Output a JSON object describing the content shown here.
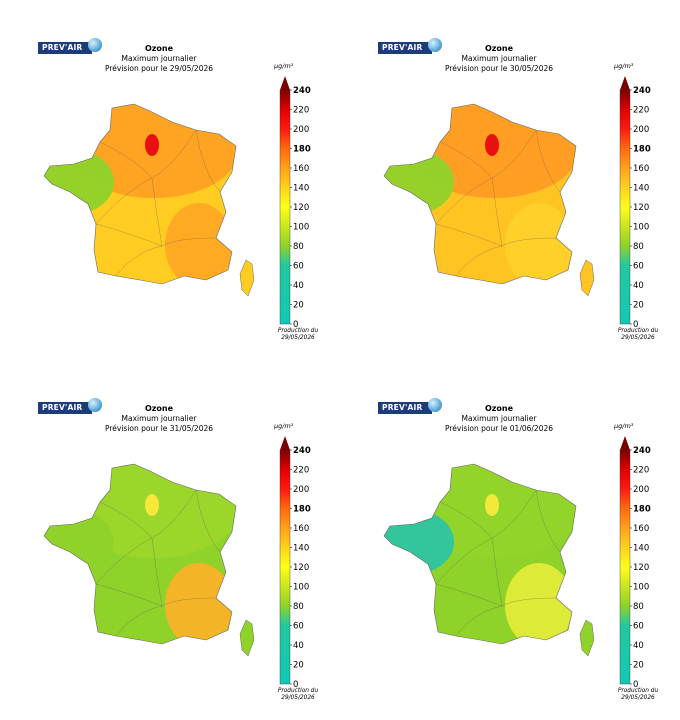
{
  "logo_text": "PREV'AIR",
  "unit": "µg/m³",
  "colorbar": {
    "ticks": [
      0,
      20,
      40,
      60,
      80,
      100,
      120,
      140,
      160,
      180,
      200,
      220,
      240
    ],
    "bold_ticks": [
      180,
      240
    ],
    "max": 240,
    "stops": [
      {
        "value": 0,
        "color": "#12c9b6"
      },
      {
        "value": 60,
        "color": "#22c8a0"
      },
      {
        "value": 80,
        "color": "#8fd22a"
      },
      {
        "value": 100,
        "color": "#c8e61e"
      },
      {
        "value": 120,
        "color": "#ffff1a"
      },
      {
        "value": 140,
        "color": "#ffd21a"
      },
      {
        "value": 160,
        "color": "#ffa21a"
      },
      {
        "value": 180,
        "color": "#ff6a10"
      },
      {
        "value": 200,
        "color": "#ff1a10"
      },
      {
        "value": 220,
        "color": "#e00000"
      },
      {
        "value": 240,
        "color": "#7a0000"
      }
    ]
  },
  "panels": [
    {
      "title": "Ozone",
      "subtitle": "Maximum journalier",
      "forecast": "Prévision pour le 29/05/2026",
      "production_label": "Production du",
      "production_date": "29/05/2026",
      "colors": {
        "base": "#ffcc22",
        "north": "#ff9f22",
        "west": "#8fd22a",
        "southeast": "#ffa622",
        "hotspot": "#e81010"
      }
    },
    {
      "title": "Ozone",
      "subtitle": "Maximum journalier",
      "forecast": "Prévision pour le 30/05/2026",
      "production_label": "Production du",
      "production_date": "29/05/2026",
      "colors": {
        "base": "#ffc422",
        "north": "#ff9a22",
        "west": "#8fd22a",
        "southeast": "#ffd22a",
        "hotspot": "#e81010"
      }
    },
    {
      "title": "Ozone",
      "subtitle": "Maximum journalier",
      "forecast": "Prévision pour le 31/05/2026",
      "production_label": "Production du",
      "production_date": "29/05/2026",
      "colors": {
        "base": "#8fd22a",
        "north": "#9cd62a",
        "west": "#8fd22a",
        "southeast": "#ffb028",
        "hotspot": "#f5e83a"
      }
    },
    {
      "title": "Ozone",
      "subtitle": "Maximum journalier",
      "forecast": "Prévision pour le 01/06/2026",
      "production_label": "Production du",
      "production_date": "29/05/2026",
      "colors": {
        "base": "#8fd22a",
        "north": "#94d42a",
        "west": "#2ec4a2",
        "southeast": "#e6ec3a",
        "hotspot": "#f2ea3a"
      }
    }
  ]
}
